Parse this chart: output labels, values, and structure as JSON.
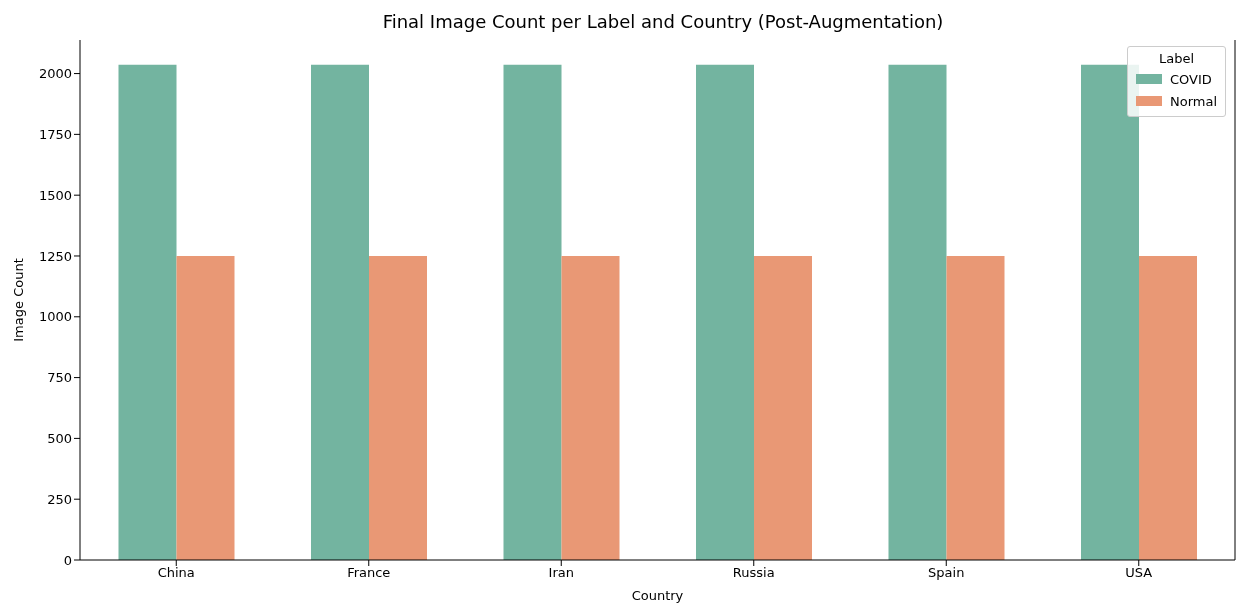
{
  "chart_data": {
    "type": "bar",
    "title": "Final Image Count per Label and Country (Post-Augmentation)",
    "xlabel": "Country",
    "ylabel": "Image Count",
    "categories": [
      "China",
      "France",
      "Iran",
      "Russia",
      "Spain",
      "USA"
    ],
    "series": [
      {
        "name": "COVID",
        "color": "#73b4a0",
        "values": [
          2036,
          2036,
          2036,
          2036,
          2036,
          2036
        ]
      },
      {
        "name": "Normal",
        "color": "#e99875",
        "values": [
          1250,
          1250,
          1250,
          1250,
          1250,
          1250
        ]
      }
    ],
    "legend_title": "Label",
    "legend": "top right",
    "ylim": [
      0,
      2138
    ],
    "yticks": [
      0,
      250,
      500,
      750,
      1000,
      1250,
      1500,
      1750,
      2000
    ],
    "grid": false
  }
}
